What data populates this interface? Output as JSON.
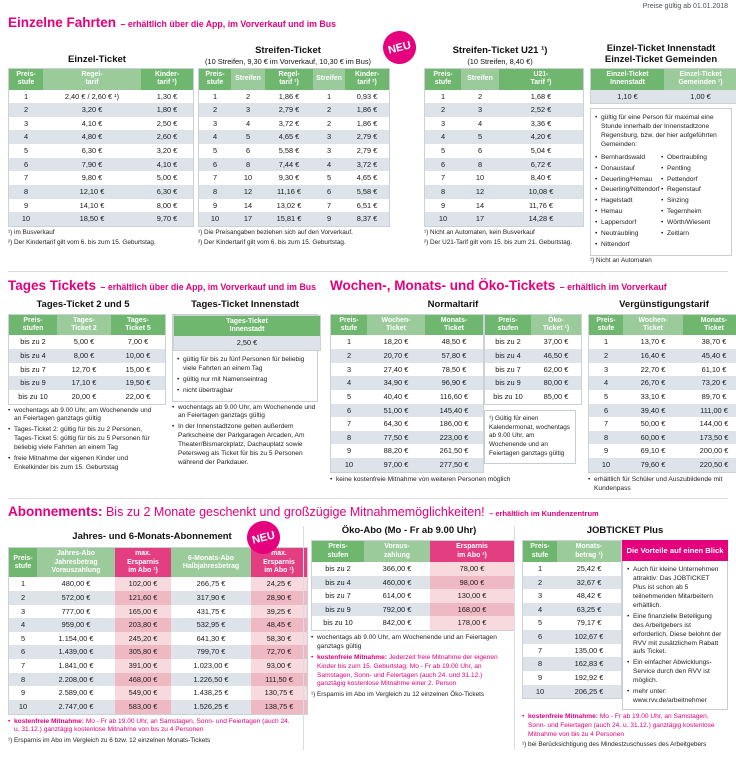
{
  "price_note": "Preise gültig ab 01.01.2018",
  "colors": {
    "accent_magenta": "#e5007d",
    "header_green_dark": "#6fb76f",
    "header_green_light": "#9bcb9b",
    "row_alt_gray": "#dde3e9",
    "pink_header": "#e43e82",
    "pink_cell": "#f7d9de",
    "pink_cell_alt": "#efb9c4"
  },
  "einzelne": {
    "title": "Einzelne Fahrten",
    "subtitle": "– erhältlich über die App, im Vorverkauf und im Bus",
    "einzel": {
      "title": "Einzel-Ticket",
      "headers": [
        "Preis-\nstufe",
        "Regel-\ntarif",
        "Kinder-\ntarif ²)"
      ],
      "rows": [
        [
          "1",
          "2,40 € / 2,60 € ¹)",
          "1,30 €"
        ],
        [
          "2",
          "3,20 €",
          "1,80 €"
        ],
        [
          "3",
          "4,10 €",
          "2,50 €"
        ],
        [
          "4",
          "4,80 €",
          "2,60 €"
        ],
        [
          "5",
          "6,30 €",
          "3,20 €"
        ],
        [
          "6",
          "7,90 €",
          "4,10 €"
        ],
        [
          "7",
          "9,80 €",
          "5,00 €"
        ],
        [
          "8",
          "12,10 €",
          "6,30 €"
        ],
        [
          "9",
          "14,10 €",
          "8,00 €"
        ],
        [
          "10",
          "18,50 €",
          "9,70 €"
        ]
      ],
      "footnotes": [
        "¹) im Busverkauf",
        "²) Der Kindertarif gilt vom 6. bis zum 15. Geburtstag."
      ]
    },
    "streifen": {
      "title": "Streifen-Ticket",
      "subtitle": "(10 Streifen, 9,30 € im Vorverkauf, 10,30 € im Bus)",
      "headers": [
        "Preis-\nstufe",
        "Streifen",
        "Regel-\ntarif ¹)",
        "Streifen",
        "Kinder-\ntarif ²)"
      ],
      "rows": [
        [
          "1",
          "2",
          "1,86 €",
          "1",
          "0,93 €"
        ],
        [
          "2",
          "3",
          "2,79 €",
          "2",
          "1,86 €"
        ],
        [
          "3",
          "4",
          "3,72 €",
          "2",
          "1,86 €"
        ],
        [
          "4",
          "5",
          "4,65 €",
          "3",
          "2,79 €"
        ],
        [
          "5",
          "6",
          "5,58 €",
          "3",
          "2,79 €"
        ],
        [
          "6",
          "8",
          "7,44 €",
          "4",
          "3,72 €"
        ],
        [
          "7",
          "10",
          "9,30 €",
          "5",
          "4,65 €"
        ],
        [
          "8",
          "12",
          "11,16 €",
          "6",
          "5,58 €"
        ],
        [
          "9",
          "14",
          "13,02 €",
          "7",
          "6,51 €"
        ],
        [
          "10",
          "17",
          "15,81 €",
          "9",
          "8,37 €"
        ]
      ],
      "footnotes": [
        "¹) Die Preisangaben beziehen sich auf den Vorverkauf.",
        "²) Der Kindertarif gilt vom 6. bis zum 15. Geburtstag."
      ]
    },
    "u21": {
      "badge": "NEU",
      "title": "Streifen-Ticket U21 ¹)",
      "subtitle": "(10 Streifen, 8,40 €)",
      "headers": [
        "Preis-\nstufe",
        "Streifen",
        "U21-\nTarif ²)"
      ],
      "rows": [
        [
          "1",
          "2",
          "1,68 €"
        ],
        [
          "2",
          "3",
          "2,52 €"
        ],
        [
          "3",
          "4",
          "3,36 €"
        ],
        [
          "4",
          "5",
          "4,20 €"
        ],
        [
          "5",
          "6",
          "5,04 €"
        ],
        [
          "6",
          "8",
          "6,72 €"
        ],
        [
          "7",
          "10",
          "8,40 €"
        ],
        [
          "8",
          "12",
          "10,08 €"
        ],
        [
          "9",
          "14",
          "11,76 €"
        ],
        [
          "10",
          "17",
          "14,28 €"
        ]
      ],
      "footnotes": [
        "¹) Nicht an Automaten, kein Busverkauf",
        "²) Der U21-Tarif gilt vom 15. bis zum 21. Geburtstag."
      ]
    },
    "innenstadt": {
      "title_line1": "Einzel-Ticket Innenstadt",
      "title_line2": "Einzel-Ticket Gemeinden",
      "headers": [
        "Einzel-Ticket\nInnenstadt",
        "Einzel-Ticket\nGemeinden ¹)"
      ],
      "rows": [
        [
          "1,10 €",
          "1,00 €"
        ]
      ],
      "info_intro": "gültig für eine Person für maximal eine Stunde innerhalb der Innenstadtzone Regensburg, bzw. der hier aufgeführten Gemeinden:",
      "gemeinden_left": [
        "Bernhardswald",
        "Donaustauf",
        "Deuerling/Hemau",
        "Deuerling/Nittendorf",
        "Hagelstadt",
        "Hemau",
        "Lappersdorf",
        "Neutraubling",
        "Nittendorf"
      ],
      "gemeinden_right": [
        "Obertraubling",
        "Pentling",
        "Pettendorf",
        "Regenstauf",
        "Sinzing",
        "Tegernheim",
        "Wörth/Wiesent",
        "Zeitlarn"
      ],
      "footnote": "¹) Nicht an Automaten"
    }
  },
  "tages": {
    "title": "Tages Tickets",
    "subtitle": "– erhältlich über die App, im Vorverkauf und im Bus",
    "t25": {
      "title": "Tages-Ticket 2 und 5",
      "headers": [
        "Preis-\nstufen",
        "Tages-\nTicket 2",
        "Tages-\nTicket 5"
      ],
      "rows": [
        [
          "bis zu 2",
          "5,00 €",
          "7,00 €"
        ],
        [
          "bis zu 4",
          "8,00 €",
          "10,00 €"
        ],
        [
          "bis zu 7",
          "12,70 €",
          "15,00 €"
        ],
        [
          "bis zu 9",
          "17,10 €",
          "19,50 €"
        ],
        [
          "bis zu 10",
          "20,00 €",
          "22,00 €"
        ]
      ],
      "bullets": [
        "wochentags ab 9.00 Uhr, am Wochenende und an Feiertagen ganztags gültig",
        "Tages-Ticket 2: gültig für bis zu 2 Personen, Tages-Ticket 5: gültig für bis zu 5 Personen für beliebig viele Fahrten an einem Tag",
        "freie Mitnahme der eigenen Kinder und Enkelkinder bis zum 15. Geburtstag"
      ]
    },
    "inner": {
      "title": "Tages-Ticket Innenstadt",
      "headers": [
        "Tages-Ticket\nInnenstadt"
      ],
      "rows": [
        [
          "2,50 €"
        ]
      ],
      "box_bullets": [
        "gültig für bis zu fünf Personen für beliebig viele Fahrten an einem Tag",
        "gültig nur mit Namenseintrag",
        "nicht übertragbar"
      ],
      "bullets": [
        "wochentags ab 9.00 Uhr, am Wochenende und an Feiertagen ganztags gültig",
        "In der Innenstadtzone gelten außerdem Parkscheine der Parkgaragen Arcaden, Am Theater/Bismarckplatz, Dachauplatz sowie Petersweg als Ticket für bis zu 5 Personen während der Parkdauer."
      ]
    }
  },
  "wochen": {
    "title": "Wochen-, Monats- und Öko-Tickets",
    "subtitle": "– erhältlich im Vorverkauf",
    "normal_title": "Normaltarif",
    "normal": {
      "headers": [
        "Preis-\nstufe",
        "Wochen-\nTicket",
        "Monats-\nTicket"
      ],
      "rows": [
        [
          "1",
          "18,20 €",
          "48,50 €"
        ],
        [
          "2",
          "20,70 €",
          "57,80 €"
        ],
        [
          "3",
          "27,40 €",
          "78,50 €"
        ],
        [
          "4",
          "34,90 €",
          "96,90 €"
        ],
        [
          "5",
          "40,40 €",
          "116,60 €"
        ],
        [
          "6",
          "51,00 €",
          "145,40 €"
        ],
        [
          "7",
          "64,30 €",
          "186,00 €"
        ],
        [
          "8",
          "77,50 €",
          "223,00 €"
        ],
        [
          "9",
          "88,20 €",
          "261,50 €"
        ],
        [
          "10",
          "97,00 €",
          "277,50 €"
        ]
      ]
    },
    "oeko": {
      "headers": [
        "Preis-\nstufen",
        "Öko-\nTicket ¹)"
      ],
      "rows": [
        [
          "bis zu 2",
          "37,00 €"
        ],
        [
          "bis zu 4",
          "46,50 €"
        ],
        [
          "bis zu 7",
          "62,00 €"
        ],
        [
          "bis zu 9",
          "80,00 €"
        ],
        [
          "bis zu 10",
          "85,00 €"
        ]
      ],
      "footnote": "¹) Gültig für einen Kalendermonat, wochentags ab 9.00 Uhr, am Wochenende und an Feiertagen ganztags gültig"
    },
    "normal_bullet": "keine kostenfreie Mitnahme von weiteren Personen möglich",
    "verg_title": "Vergünstigungstarif",
    "verg": {
      "headers": [
        "Preis-\nstufe",
        "Wochen-\nTicket",
        "Monats-\nTicket"
      ],
      "rows": [
        [
          "1",
          "13,70 €",
          "38,70 €"
        ],
        [
          "2",
          "16,40 €",
          "45,40 €"
        ],
        [
          "3",
          "22,70 €",
          "61,10 €"
        ],
        [
          "4",
          "26,70 €",
          "73,20 €"
        ],
        [
          "5",
          "33,10 €",
          "89,70 €"
        ],
        [
          "6",
          "39,40 €",
          "111,00 €"
        ],
        [
          "7",
          "50,00 €",
          "144,00 €"
        ],
        [
          "8",
          "60,00 €",
          "173,50 €"
        ],
        [
          "9",
          "69,10 €",
          "200,00 €"
        ],
        [
          "10",
          "79,60 €",
          "220,50 €"
        ]
      ]
    },
    "verg_bullet": "erhältlich für Schüler und Auszubildende mit Kundenpass"
  },
  "abo": {
    "title_bold": "Abonnements:",
    "title_rest": " Bis zu 2 Monate geschenkt und großzügige Mitnahmemöglichkeiten!",
    "subtitle": "– erhältlich im Kundenzentrum",
    "jahres": {
      "badge": "NEU",
      "title": "Jahres- und 6-Monats-Abonnement",
      "headers": [
        "Preis-\nstufe",
        "Jahres-Abo\nJahresbetrag\nVorauszahlung",
        "max.\nErsparnis\nim Abo ¹)",
        "6-Monats-Abo\nHalbjahresbetrag",
        "max.\nErsparnis\nim Abo ¹)"
      ],
      "rows": [
        [
          "1",
          "480,00 €",
          "102,00 €",
          "266,75 €",
          "24,25 €"
        ],
        [
          "2",
          "572,00 €",
          "121,60 €",
          "317,90 €",
          "28,90 €"
        ],
        [
          "3",
          "777,00 €",
          "165,00 €",
          "431,75 €",
          "39,25 €"
        ],
        [
          "4",
          "959,00 €",
          "203,80 €",
          "532,95 €",
          "48,45 €"
        ],
        [
          "5",
          "1.154,00 €",
          "245,20 €",
          "641,30 €",
          "58,30 €"
        ],
        [
          "6",
          "1.439,00 €",
          "305,80 €",
          "799,70 €",
          "72,70 €"
        ],
        [
          "7",
          "1.841,00 €",
          "391,00 €",
          "1.023,00 €",
          "93,00 €"
        ],
        [
          "8",
          "2.208,00 €",
          "468,00 €",
          "1.226,50 €",
          "111,50 €"
        ],
        [
          "9",
          "2.589,00 €",
          "549,00 €",
          "1.438,25 €",
          "130,75 €"
        ],
        [
          "10",
          "2.747,00 €",
          "583,00 €",
          "1.526,25 €",
          "138,75 €"
        ]
      ],
      "mitnahme_bold": "kostenfreie Mitnahme:",
      "mitnahme_rest": " Mo - Fr ab 19.00 Uhr, an Samstagen, Sonn- und Feiertagen (auch 24. u. 31.12.) ganztägig kostenlose Mitnahme von bis zu 4 Personen",
      "footnote": "¹) Ersparnis im Abo im Vergleich zu 6 bzw. 12 einzelnen Monats-Tickets"
    },
    "oeko": {
      "title": "Öko-Abo (Mo - Fr ab 9.00 Uhr)",
      "headers": [
        "Preis-\nstufen",
        "Voraus-\nzahlung",
        "Ersparnis\nim Abo ¹)"
      ],
      "rows": [
        [
          "bis zu 2",
          "366,00 €",
          "78,00 €"
        ],
        [
          "bis zu 4",
          "460,00 €",
          "98,00 €"
        ],
        [
          "bis zu 7",
          "614,00 €",
          "130,00 €"
        ],
        [
          "bis zu 9",
          "792,00 €",
          "168,00 €"
        ],
        [
          "bis zu 10",
          "842,00 €",
          "178,00 €"
        ]
      ],
      "bullet1": "wochentags ab 9.00 Uhr, am Wochenende und an Feiertagen ganztags gültig",
      "mitnahme_bold": "kostenfreie Mitnahme:",
      "mitnahme_rest": " Jederzeit freie Mitnahme der eigenen Kinder bis zum 15. Geburtstag; Mo - Fr ab 19.00 Uhr, an Samstagen, Sonn- und Feiertagen (auch 24. und 31.12.) ganztägig kostenlose Mitnahme einer 2. Person",
      "footnote": "¹) Ersparnis im Abo im Vergleich zu 12 einzelnen Öko-Tickets"
    },
    "job": {
      "title": "JOBTICKET Plus",
      "headers": [
        "Preis-\nstufe",
        "Monats-\nbetrag ¹)"
      ],
      "rows": [
        [
          "1",
          "25,42 €"
        ],
        [
          "2",
          "32,67 €"
        ],
        [
          "3",
          "48,42 €"
        ],
        [
          "4",
          "63,25 €"
        ],
        [
          "5",
          "79,17 €"
        ],
        [
          "6",
          "102,67 €"
        ],
        [
          "7",
          "135,00 €"
        ],
        [
          "8",
          "162,83 €"
        ],
        [
          "9",
          "192,92 €"
        ],
        [
          "10",
          "206,25 €"
        ]
      ],
      "vorteile_title": "Die Vorteile auf einen Blick",
      "vorteile": [
        "Auch für kleine Unternehmen attraktiv: Das JOBTICKET Plus ist schon ab 5 teilnehmenden Mitarbeitern erhältlich.",
        "Eine finanzielle Beteiligung des Arbeitgebers ist erforderlich. Diese belohnt der RVV mit zusätzlichem Rabatt aufs Ticket.",
        "Ein einfacher Abwicklungs-Service durch den RVV ist möglich.",
        "mehr unter: www.rvv.de/arbeitnehmer"
      ],
      "mitnahme_bold": "kostenfreie Mitnahme:",
      "mitnahme_rest": " Mo - Fr ab 19.00 Uhr, an Samstagen, Sonn- und Feiertagen (auch 24. u. 31.12.) ganztägig kostenlose Mitnahme von bis zu 4 Personen",
      "footnote": "¹) bei Berücksichtigung des Mindestzuschusses des Arbeitgebers"
    }
  }
}
